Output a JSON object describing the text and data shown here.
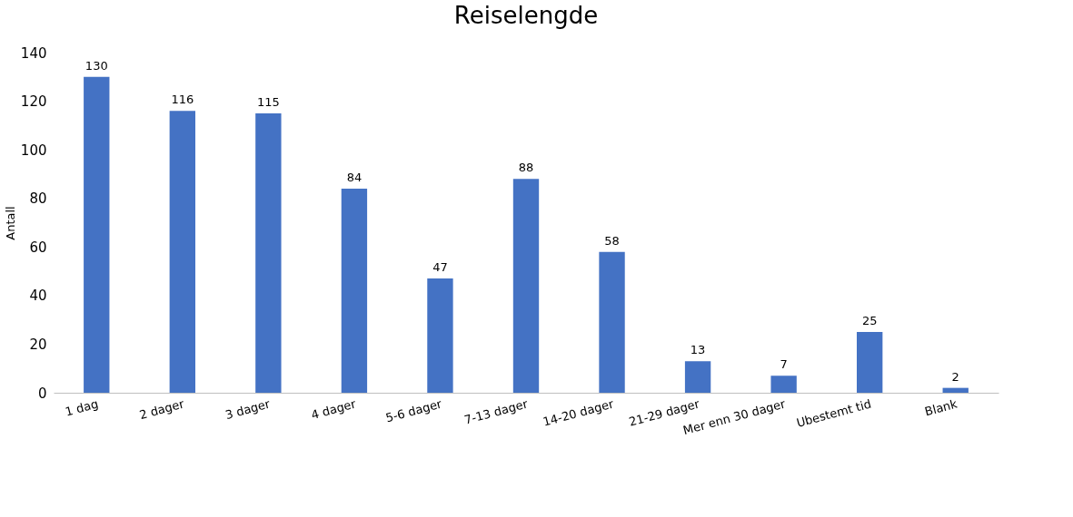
{
  "chart_data": {
    "type": "bar",
    "title": "Reiselengde",
    "ylabel": "Antall",
    "categories": [
      "1 dag",
      "2 dager",
      "3 dager",
      "4 dager",
      "5-6 dager",
      "7-13 dager",
      "14-20 dager",
      "21-29 dager",
      "Mer enn 30 dager",
      "Ubestemt tid",
      "Blank"
    ],
    "values": [
      130,
      116,
      115,
      84,
      47,
      88,
      58,
      13,
      7,
      25,
      2
    ],
    "color": "#4472c4",
    "ylim": [
      0,
      140
    ],
    "yticks": [
      0,
      20,
      40,
      60,
      80,
      100,
      120,
      140
    ],
    "grid": false,
    "data_labels": true
  }
}
